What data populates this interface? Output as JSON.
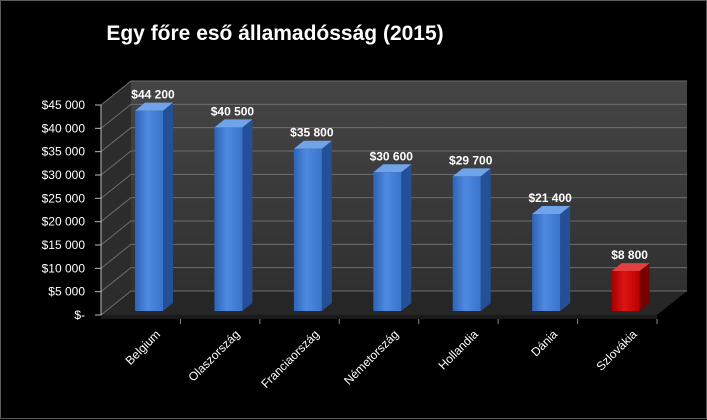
{
  "chart_data": {
    "type": "bar",
    "title": "Egy főre eső államadósság (2015)",
    "categories": [
      "Belgium",
      "Olaszország",
      "Franciaország",
      "Németország",
      "Hollandia",
      "Dánia",
      "Szlovákia"
    ],
    "values": [
      44200,
      40500,
      35800,
      30600,
      29700,
      21400,
      8800
    ],
    "data_labels": [
      "$44 200",
      "$40 500",
      "$35 800",
      "$30 600",
      "$29 700",
      "$21 400",
      "$8 800"
    ],
    "y_ticks": [
      0,
      5000,
      10000,
      15000,
      20000,
      25000,
      30000,
      35000,
      40000,
      45000
    ],
    "y_tick_labels": [
      "$-",
      "$5 000",
      "$10 000",
      "$15 000",
      "$20 000",
      "$25 000",
      "$30 000",
      "$35 000",
      "$40 000",
      "$45 000"
    ],
    "ylim": [
      0,
      45000
    ],
    "grid": true,
    "legend": "none",
    "colors": {
      "default_bar": "#3f7fd6",
      "highlight_bar": "#c00000",
      "highlight_category": "Szlovákia",
      "background": "#000000",
      "wall": "#3a3a3a",
      "floor": "#2a2a2a"
    }
  }
}
